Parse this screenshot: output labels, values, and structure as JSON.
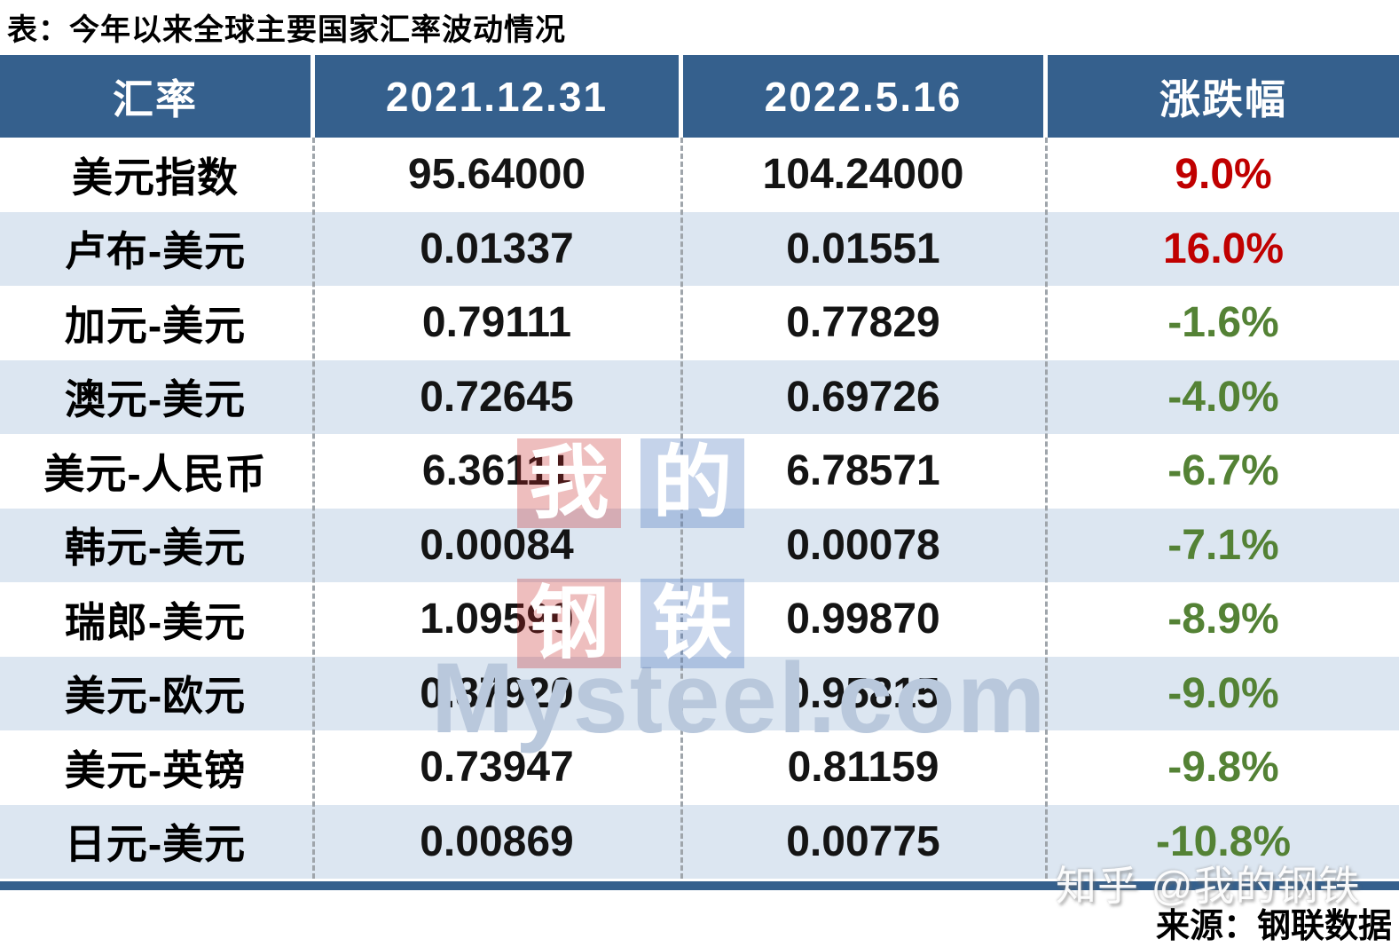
{
  "title": "表：今年以来全球主要国家汇率波动情况",
  "table": {
    "headers": [
      "汇率",
      "2021.12.31",
      "2022.5.16",
      "涨跌幅"
    ],
    "rows": [
      {
        "pair": "美元指数",
        "v1": "95.64000",
        "v2": "104.24000",
        "change": "9.0%"
      },
      {
        "pair": "卢布-美元",
        "v1": "0.01337",
        "v2": "0.01551",
        "change": "16.0%"
      },
      {
        "pair": "加元-美元",
        "v1": "0.79111",
        "v2": "0.77829",
        "change": "-1.6%"
      },
      {
        "pair": "澳元-美元",
        "v1": "0.72645",
        "v2": "0.69726",
        "change": "-4.0%"
      },
      {
        "pair": "美元-人民币",
        "v1": "6.36111",
        "v2": "6.78571",
        "change": "-6.7%"
      },
      {
        "pair": "韩元-美元",
        "v1": "0.00084",
        "v2": "0.00078",
        "change": "-7.1%"
      },
      {
        "pair": "瑞郎-美元",
        "v1": "1.09590",
        "v2": "0.99870",
        "change": "-8.9%"
      },
      {
        "pair": "美元-欧元",
        "v1": "0.87920",
        "v2": "0.95815",
        "change": "-9.0%"
      },
      {
        "pair": "美元-英镑",
        "v1": "0.73947",
        "v2": "0.81159",
        "change": "-9.8%"
      },
      {
        "pair": "日元-美元",
        "v1": "0.00869",
        "v2": "0.00775",
        "change": "-10.8%"
      }
    ]
  },
  "watermark": {
    "chars": [
      "我",
      "的",
      "钢",
      "铁"
    ],
    "brand": "Mysteel.com",
    "zhihu": "知乎 @我的钢铁"
  },
  "source": "来源：钢联数据",
  "colors": {
    "header_bg": "#35608D",
    "row_alt_bg": "#DCE6F1",
    "up_red": "#C00000",
    "down_green": "#548235",
    "bottom_bar": "#35608D"
  },
  "chart_data": {
    "type": "table",
    "title": "表：今年以来全球主要国家汇率波动情况",
    "columns": [
      "汇率",
      "2021.12.31",
      "2022.5.16",
      "涨跌幅"
    ],
    "rows": [
      [
        "美元指数",
        95.64,
        104.24,
        "9.0%"
      ],
      [
        "卢布-美元",
        0.01337,
        0.01551,
        "16.0%"
      ],
      [
        "加元-美元",
        0.79111,
        0.77829,
        "-1.6%"
      ],
      [
        "澳元-美元",
        0.72645,
        0.69726,
        "-4.0%"
      ],
      [
        "美元-人民币",
        6.36111,
        6.78571,
        "-6.7%"
      ],
      [
        "韩元-美元",
        0.00084,
        0.00078,
        "-7.1%"
      ],
      [
        "瑞郎-美元",
        1.0959,
        0.9987,
        "-8.9%"
      ],
      [
        "美元-欧元",
        0.8792,
        0.95815,
        "-9.0%"
      ],
      [
        "美元-英镑",
        0.73947,
        0.81159,
        "-9.8%"
      ],
      [
        "日元-美元",
        0.00869,
        0.00775,
        "-10.8%"
      ]
    ],
    "notes": "positive changes shown in red, negative in green; source 钢联数据"
  }
}
